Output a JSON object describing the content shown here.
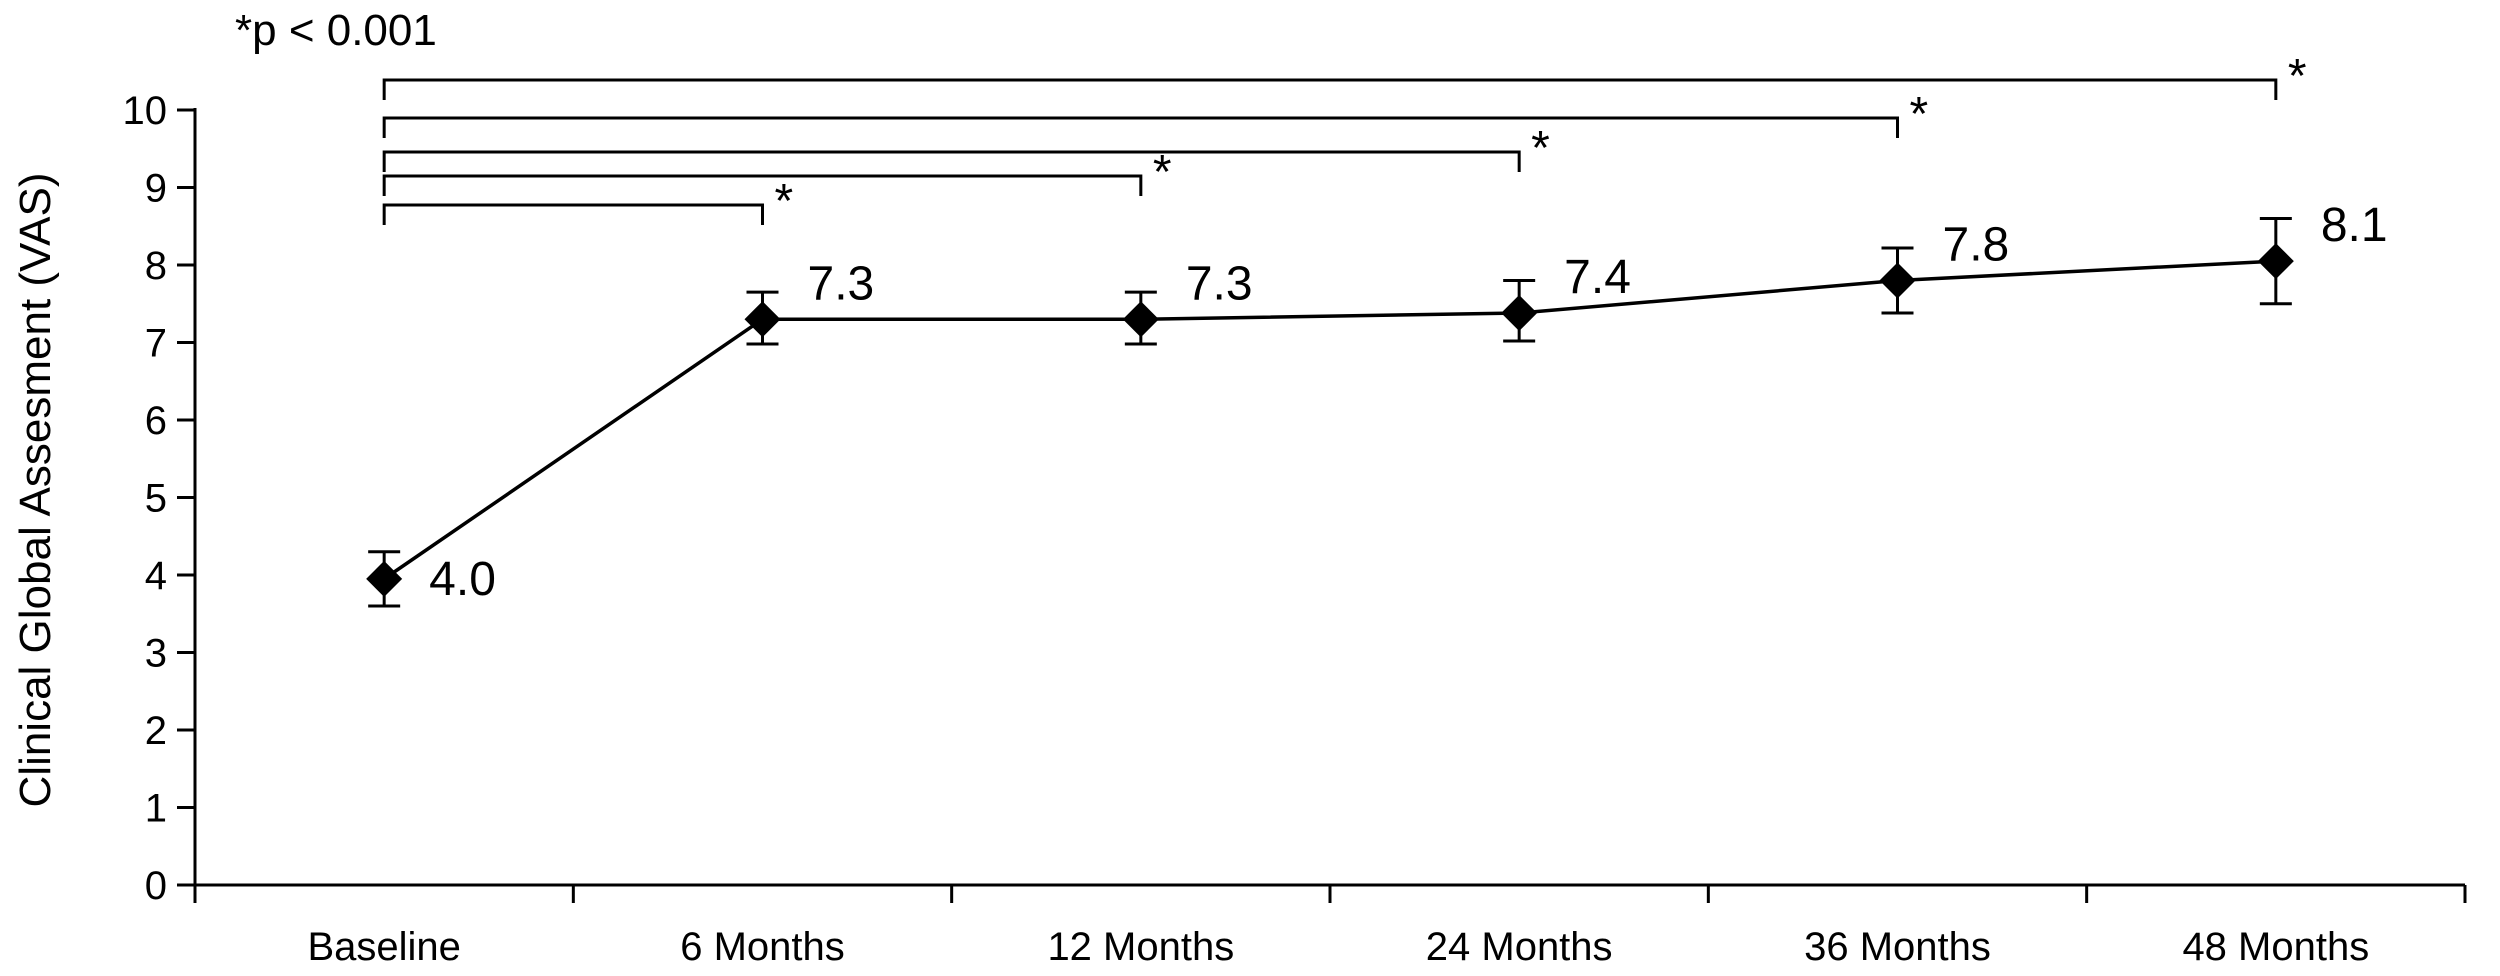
{
  "chart_data": {
    "type": "line",
    "title": "",
    "xlabel": "",
    "ylabel": "Clinical Global Assesment (VAS)",
    "ylim": [
      0,
      10
    ],
    "yticks": [
      0,
      1,
      2,
      3,
      4,
      5,
      6,
      7,
      8,
      9,
      10
    ],
    "categories": [
      "Baseline",
      "6 Months",
      "12 Months",
      "24 Months",
      "36 Months",
      "48 Months"
    ],
    "series": [
      {
        "values": [
          3.95,
          7.3,
          7.3,
          7.38,
          7.8,
          8.05
        ],
        "error_low": [
          3.6,
          6.98,
          6.98,
          7.02,
          7.38,
          7.5
        ],
        "error_high": [
          4.3,
          7.65,
          7.65,
          7.8,
          8.22,
          8.6
        ],
        "data_labels": [
          "4.0",
          "7.3",
          "7.3",
          "7.4",
          "7.8",
          "8.1"
        ],
        "marker": "diamond",
        "color": "#000000"
      }
    ],
    "significance": {
      "note": "*p < 0.001",
      "brackets": [
        {
          "from": "Baseline",
          "to": "6 Months",
          "label": "*"
        },
        {
          "from": "Baseline",
          "to": "12 Months",
          "label": "*"
        },
        {
          "from": "Baseline",
          "to": "24 Months",
          "label": "*"
        },
        {
          "from": "Baseline",
          "to": "36 Months",
          "label": "*"
        },
        {
          "from": "Baseline",
          "to": "48 Months",
          "label": "*"
        }
      ]
    }
  }
}
